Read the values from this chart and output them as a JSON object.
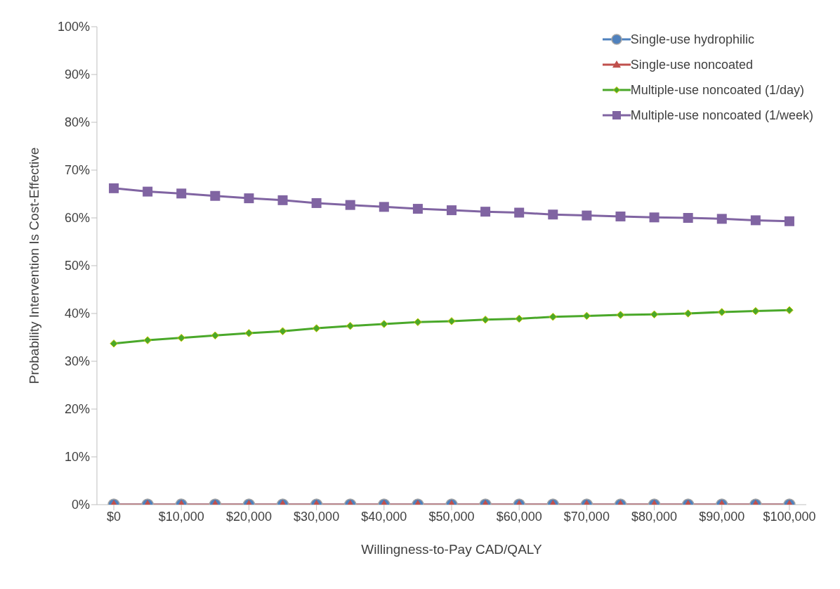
{
  "chart_data": {
    "type": "line",
    "xlabel": "Willingness-to-Pay CAD/QALY",
    "ylabel": "Probability Intervention Is Cost-Effective",
    "x": [
      0,
      5000,
      10000,
      15000,
      20000,
      25000,
      30000,
      35000,
      40000,
      45000,
      50000,
      55000,
      60000,
      65000,
      70000,
      75000,
      80000,
      85000,
      90000,
      95000,
      100000
    ],
    "xlim": [
      -2500,
      102500
    ],
    "xticks": [
      {
        "value": 0,
        "label": "$0"
      },
      {
        "value": 10000,
        "label": "$10,000"
      },
      {
        "value": 20000,
        "label": "$20,000"
      },
      {
        "value": 30000,
        "label": "$30,000"
      },
      {
        "value": 40000,
        "label": "$40,000"
      },
      {
        "value": 50000,
        "label": "$50,000"
      },
      {
        "value": 60000,
        "label": "$60,000"
      },
      {
        "value": 70000,
        "label": "$70,000"
      },
      {
        "value": 80000,
        "label": "$80,000"
      },
      {
        "value": 90000,
        "label": "$90,000"
      },
      {
        "value": 100000,
        "label": "$100,000"
      }
    ],
    "ylim": [
      0,
      100
    ],
    "yticks": [
      {
        "value": 0,
        "label": "0%"
      },
      {
        "value": 10,
        "label": "10%"
      },
      {
        "value": 20,
        "label": "20%"
      },
      {
        "value": 30,
        "label": "30%"
      },
      {
        "value": 40,
        "label": "40%"
      },
      {
        "value": 50,
        "label": "50%"
      },
      {
        "value": 60,
        "label": "60%"
      },
      {
        "value": 70,
        "label": "70%"
      },
      {
        "value": 80,
        "label": "80%"
      },
      {
        "value": 90,
        "label": "90%"
      },
      {
        "value": 100,
        "label": "100%"
      }
    ],
    "legend": "top right",
    "series": [
      {
        "name": "Single-use hydrophilic",
        "color": "#4f81bd",
        "marker": "circle",
        "values": [
          0,
          0,
          0,
          0,
          0,
          0,
          0,
          0,
          0,
          0,
          0,
          0,
          0,
          0,
          0,
          0,
          0,
          0,
          0,
          0,
          0
        ]
      },
      {
        "name": "Single-use noncoated",
        "color": "#c0504d",
        "marker": "triangle",
        "values": [
          0,
          0,
          0,
          0,
          0,
          0,
          0,
          0,
          0,
          0,
          0,
          0,
          0,
          0,
          0,
          0,
          0,
          0,
          0,
          0,
          0
        ]
      },
      {
        "name": "Multiple-use noncoated (1/day)",
        "color": "#4aa82a",
        "marker": "diamond",
        "values": [
          33.7,
          34.4,
          34.9,
          35.4,
          35.9,
          36.3,
          36.9,
          37.4,
          37.8,
          38.2,
          38.4,
          38.7,
          38.9,
          39.3,
          39.5,
          39.7,
          39.8,
          40.0,
          40.3,
          40.5,
          40.7
        ]
      },
      {
        "name": "Multiple-use noncoated (1/week)",
        "color": "#8064a2",
        "marker": "square",
        "values": [
          66.2,
          65.5,
          65.1,
          64.6,
          64.1,
          63.7,
          63.1,
          62.7,
          62.3,
          61.9,
          61.6,
          61.3,
          61.1,
          60.7,
          60.5,
          60.3,
          60.1,
          60.0,
          59.8,
          59.5,
          59.3
        ]
      }
    ]
  }
}
